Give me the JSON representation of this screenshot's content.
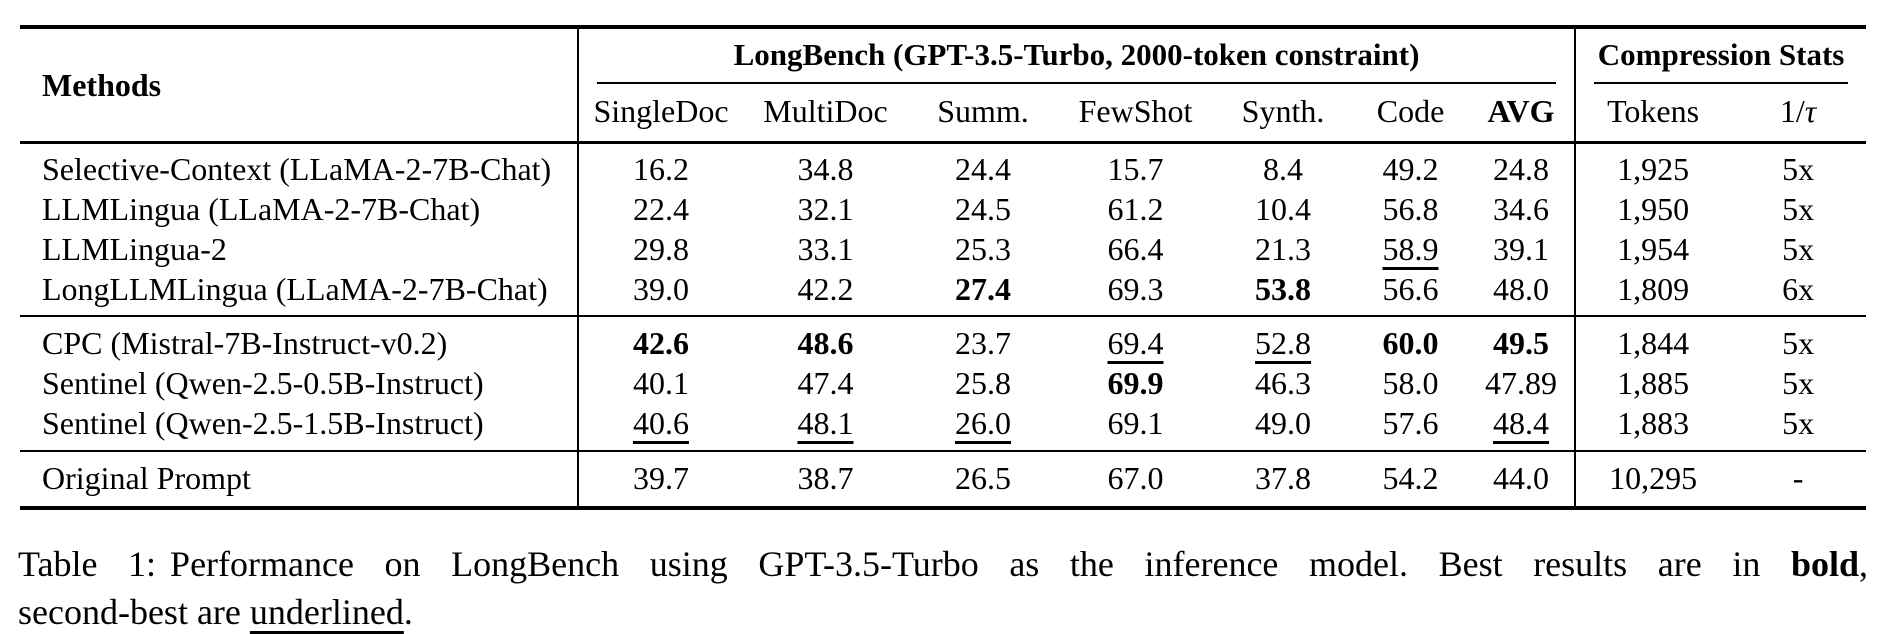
{
  "page": {
    "background": "#ffffff",
    "text_color": "#000000"
  },
  "table": {
    "header": {
      "methods_label": "Methods",
      "group1_label": "LongBench (GPT-3.5-Turbo, 2000-token constraint)",
      "group2_label": "Compression Stats",
      "columns": [
        "SingleDoc",
        "MultiDoc",
        "Summ.",
        "FewShot",
        "Synth.",
        "Code",
        "AVG",
        "Tokens"
      ],
      "ratio_prefix": "1/",
      "ratio_symbol": "τ"
    },
    "column_ids": [
      "singledoc",
      "multidoc",
      "summ",
      "fewshot",
      "synth",
      "code",
      "avg",
      "tokens",
      "ratio"
    ],
    "style_legend": {
      "b": "bold = best result",
      "u": "underline = second-best result"
    },
    "sections": [
      {
        "name": "baseline-methods",
        "rows": [
          {
            "method": "Selective-Context (LLaMA-2-7B-Chat)",
            "cells": [
              {
                "t": "16.2"
              },
              {
                "t": "34.8"
              },
              {
                "t": "24.4"
              },
              {
                "t": "15.7"
              },
              {
                "t": "8.4"
              },
              {
                "t": "49.2"
              },
              {
                "t": "24.8"
              },
              {
                "t": "1,925"
              },
              {
                "t": "5x"
              }
            ]
          },
          {
            "method": "LLMLingua (LLaMA-2-7B-Chat)",
            "cells": [
              {
                "t": "22.4"
              },
              {
                "t": "32.1"
              },
              {
                "t": "24.5"
              },
              {
                "t": "61.2"
              },
              {
                "t": "10.4"
              },
              {
                "t": "56.8"
              },
              {
                "t": "34.6"
              },
              {
                "t": "1,950"
              },
              {
                "t": "5x"
              }
            ]
          },
          {
            "method": "LLMLingua-2",
            "cells": [
              {
                "t": "29.8"
              },
              {
                "t": "33.1"
              },
              {
                "t": "25.3"
              },
              {
                "t": "66.4"
              },
              {
                "t": "21.3"
              },
              {
                "t": "58.9",
                "s": "u"
              },
              {
                "t": "39.1"
              },
              {
                "t": "1,954"
              },
              {
                "t": "5x"
              }
            ]
          },
          {
            "method": "LongLLMLingua (LLaMA-2-7B-Chat)",
            "cells": [
              {
                "t": "39.0"
              },
              {
                "t": "42.2"
              },
              {
                "t": "27.4",
                "s": "b"
              },
              {
                "t": "69.3"
              },
              {
                "t": "53.8",
                "s": "b"
              },
              {
                "t": "56.6"
              },
              {
                "t": "48.0"
              },
              {
                "t": "1,809"
              },
              {
                "t": "6x"
              }
            ]
          }
        ]
      },
      {
        "name": "compared-methods",
        "rows": [
          {
            "method": "CPC (Mistral-7B-Instruct-v0.2)",
            "cells": [
              {
                "t": "42.6",
                "s": "b"
              },
              {
                "t": "48.6",
                "s": "b"
              },
              {
                "t": "23.7"
              },
              {
                "t": "69.4",
                "s": "u"
              },
              {
                "t": "52.8",
                "s": "u"
              },
              {
                "t": "60.0",
                "s": "b"
              },
              {
                "t": "49.5",
                "s": "b"
              },
              {
                "t": "1,844"
              },
              {
                "t": "5x"
              }
            ]
          },
          {
            "method": "Sentinel (Qwen-2.5-0.5B-Instruct)",
            "cells": [
              {
                "t": "40.1"
              },
              {
                "t": "47.4"
              },
              {
                "t": "25.8"
              },
              {
                "t": "69.9",
                "s": "b"
              },
              {
                "t": "46.3"
              },
              {
                "t": "58.0"
              },
              {
                "t": "47.89"
              },
              {
                "t": "1,885"
              },
              {
                "t": "5x"
              }
            ]
          },
          {
            "method": "Sentinel (Qwen-2.5-1.5B-Instruct)",
            "cells": [
              {
                "t": "40.6",
                "s": "u"
              },
              {
                "t": "48.1",
                "s": "u"
              },
              {
                "t": "26.0",
                "s": "u"
              },
              {
                "t": "69.1"
              },
              {
                "t": "49.0"
              },
              {
                "t": "57.6"
              },
              {
                "t": "48.4",
                "s": "u"
              },
              {
                "t": "1,883"
              },
              {
                "t": "5x"
              }
            ]
          }
        ]
      },
      {
        "name": "original-prompt",
        "rows": [
          {
            "method": "Original Prompt",
            "cells": [
              {
                "t": "39.7"
              },
              {
                "t": "38.7"
              },
              {
                "t": "26.5"
              },
              {
                "t": "67.0"
              },
              {
                "t": "37.8"
              },
              {
                "t": "54.2"
              },
              {
                "t": "44.0"
              },
              {
                "t": "10,295"
              },
              {
                "t": "-"
              }
            ]
          }
        ]
      }
    ]
  },
  "caption": {
    "prefix": "Table 1:",
    "body_before_bold": "Performance on LongBench using GPT-3.5-Turbo as the inference model.  Best results are in ",
    "bold_word": "bold",
    "after_bold": ",",
    "line2_before_underline": "second-best are ",
    "underlined_word": "underlined",
    "after_underline": "."
  }
}
